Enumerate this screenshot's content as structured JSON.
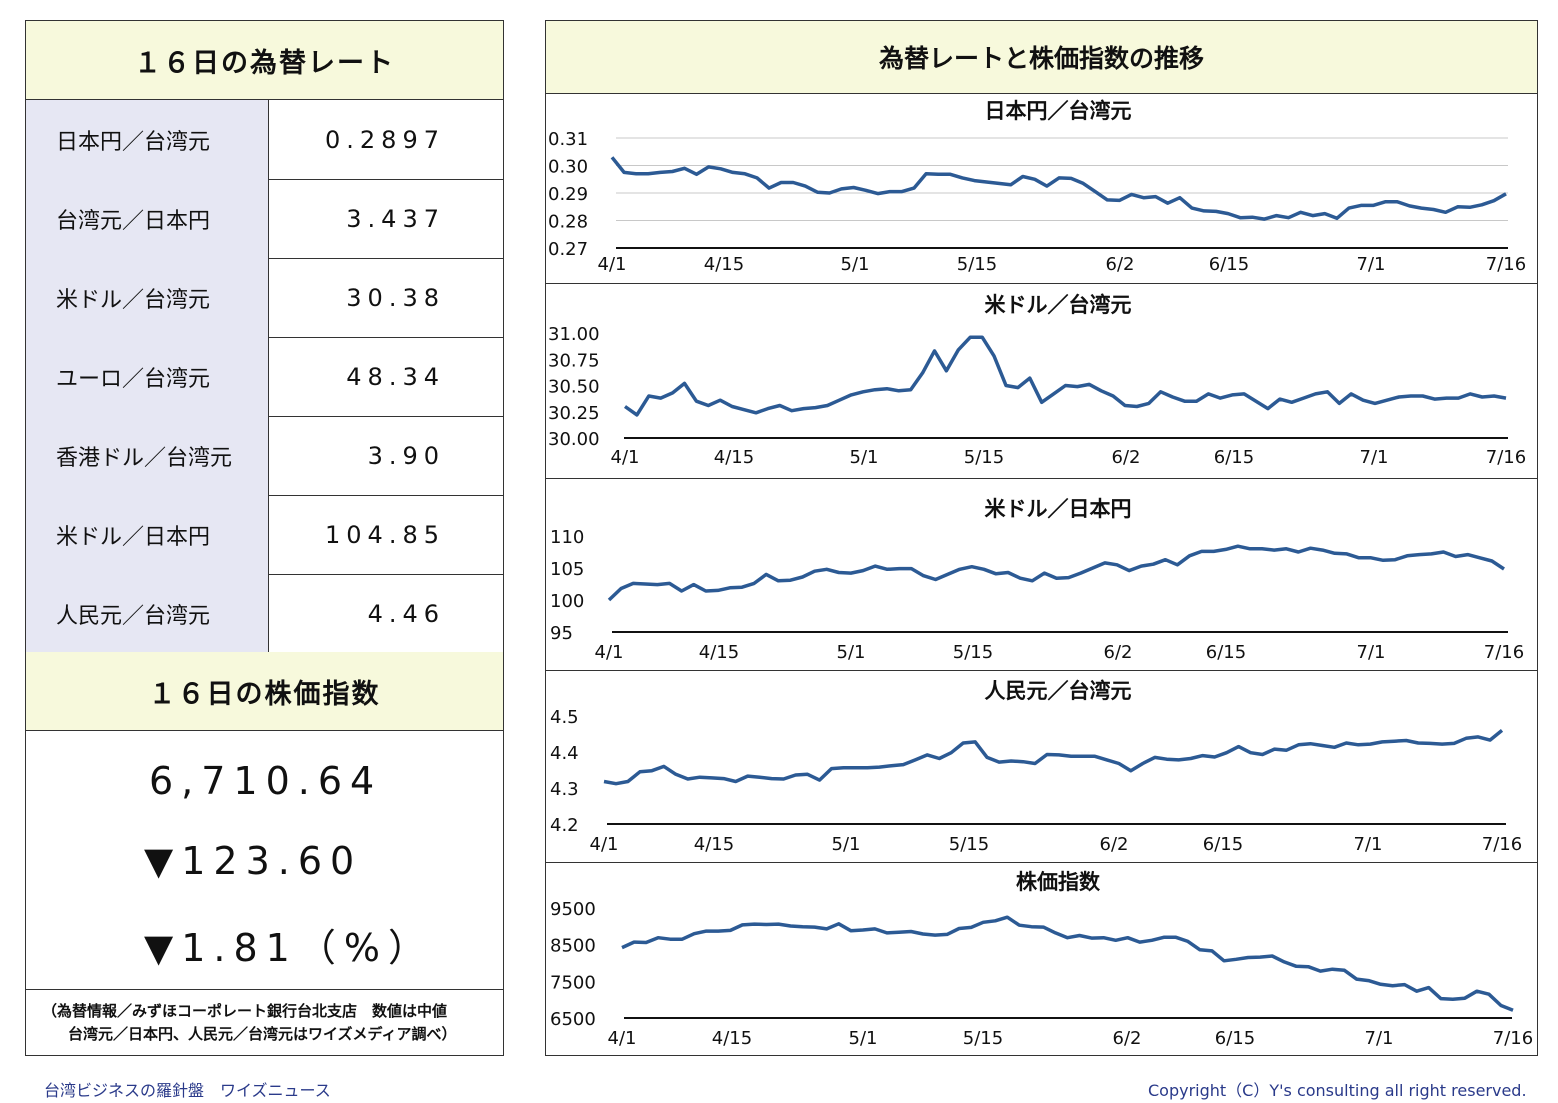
{
  "left": {
    "rate_title": "１６日の為替レート",
    "rates": [
      {
        "name": "日本円／台湾元",
        "value": "0.2897"
      },
      {
        "name": "台湾元／日本円",
        "value": "3.437"
      },
      {
        "name": "米ドル／台湾元",
        "value": "30.38"
      },
      {
        "name": "ユーロ／台湾元",
        "value": "48.34"
      },
      {
        "name": "香港ドル／台湾元",
        "value": "3.90"
      },
      {
        "name": "米ドル／日本円",
        "value": "104.85"
      },
      {
        "name": "人民元／台湾元",
        "value": "4.46"
      }
    ],
    "stock_title": "１６日の株価指数",
    "stock_value": "6,710.64",
    "stock_change": "▼123.60",
    "stock_change_pct": "▼1.81（%）",
    "note_line1": "（為替情報／みずほコーポレート銀行台北支店　数値は中値",
    "note_line2": "台湾元／日本円、人民元／台湾元はワイズメディア調べ）"
  },
  "right": {
    "title": "為替レートと株価指数の推移"
  },
  "footer": {
    "left": "台湾ビジネスの羅針盤　ワイズニュース",
    "right": "Copyright（C）Y's consulting all right reserved."
  },
  "colors": {
    "line": "#2c5a94",
    "header_bg": "#f7f9dc",
    "label_bg": "#e6e7f3"
  },
  "chart_data": [
    {
      "type": "line",
      "title": "日本円／台湾元",
      "x_ticks": [
        "4/1",
        "4/15",
        "5/1",
        "5/15",
        "6/2",
        "6/15",
        "7/1",
        "7/16"
      ],
      "y_ticks": [
        "0.31",
        "0.30",
        "0.29",
        "0.28",
        "0.27"
      ],
      "ylim": [
        0.27,
        0.31
      ],
      "values": [
        0.303,
        0.2975,
        0.297,
        0.297,
        0.2975,
        0.2978,
        0.299,
        0.2968,
        0.2995,
        0.2988,
        0.2975,
        0.297,
        0.2955,
        0.2918,
        0.2938,
        0.2938,
        0.2925,
        0.2903,
        0.29,
        0.2915,
        0.292,
        0.291,
        0.2898,
        0.2905,
        0.2905,
        0.2918,
        0.297,
        0.2968,
        0.2968,
        0.2955,
        0.2945,
        0.294,
        0.2935,
        0.293,
        0.296,
        0.295,
        0.2925,
        0.2955,
        0.2953,
        0.2935,
        0.2905,
        0.2875,
        0.2873,
        0.2895,
        0.2883,
        0.2887,
        0.2863,
        0.2883,
        0.2845,
        0.2835,
        0.2833,
        0.2825,
        0.281,
        0.2812,
        0.2805,
        0.2818,
        0.281,
        0.283,
        0.2818,
        0.2825,
        0.2808,
        0.2845,
        0.2855,
        0.2855,
        0.2868,
        0.2868,
        0.2853,
        0.2845,
        0.284,
        0.283,
        0.285,
        0.2848,
        0.2857,
        0.2872,
        0.2897
      ]
    },
    {
      "type": "line",
      "title": "米ドル／台湾元",
      "x_ticks": [
        "4/1",
        "4/15",
        "5/1",
        "5/15",
        "6/2",
        "6/15",
        "7/1",
        "7/16"
      ],
      "y_ticks": [
        "31.00",
        "30.75",
        "30.50",
        "30.25",
        "30.00"
      ],
      "ylim": [
        30.0,
        31.0
      ],
      "values": [
        30.3,
        30.22,
        30.4,
        30.38,
        30.43,
        30.52,
        30.35,
        30.31,
        30.36,
        30.3,
        30.27,
        30.24,
        30.28,
        30.31,
        30.26,
        30.28,
        30.29,
        30.31,
        30.36,
        30.41,
        30.44,
        30.46,
        30.47,
        30.45,
        30.46,
        30.62,
        30.83,
        30.64,
        30.84,
        30.96,
        30.96,
        30.78,
        30.5,
        30.48,
        30.57,
        30.34,
        30.42,
        30.5,
        30.49,
        30.51,
        30.45,
        30.4,
        30.31,
        30.3,
        30.33,
        30.44,
        30.39,
        30.35,
        30.35,
        30.42,
        30.38,
        30.41,
        30.42,
        30.35,
        30.28,
        30.37,
        30.34,
        30.38,
        30.42,
        30.44,
        30.33,
        30.42,
        30.36,
        30.33,
        30.36,
        30.39,
        30.4,
        30.4,
        30.37,
        30.38,
        30.38,
        30.42,
        30.39,
        30.4,
        30.38
      ]
    },
    {
      "type": "line",
      "title": "米ドル／日本円",
      "x_ticks": [
        "4/1",
        "4/15",
        "5/1",
        "5/15",
        "6/2",
        "6/15",
        "7/1",
        "7/16"
      ],
      "y_ticks": [
        "110",
        "105",
        "100",
        "95"
      ],
      "ylim": [
        95,
        110
      ],
      "values": [
        100.0,
        101.8,
        102.6,
        102.5,
        102.4,
        102.6,
        101.4,
        102.4,
        101.4,
        101.5,
        101.9,
        102.0,
        102.6,
        104.0,
        103.0,
        103.1,
        103.6,
        104.5,
        104.8,
        104.3,
        104.2,
        104.6,
        105.3,
        104.8,
        104.9,
        104.9,
        103.8,
        103.2,
        104.0,
        104.8,
        105.2,
        104.8,
        104.1,
        104.3,
        103.4,
        103.0,
        104.2,
        103.4,
        103.5,
        104.2,
        105.0,
        105.8,
        105.5,
        104.6,
        105.3,
        105.6,
        106.3,
        105.5,
        106.9,
        107.6,
        107.6,
        107.9,
        108.4,
        108.0,
        108.0,
        107.8,
        108.0,
        107.5,
        108.1,
        107.8,
        107.3,
        107.2,
        106.6,
        106.6,
        106.2,
        106.3,
        106.9,
        107.1,
        107.2,
        107.5,
        106.8,
        107.1,
        106.6,
        106.1,
        104.85
      ]
    },
    {
      "type": "line",
      "title": "人民元／台湾元",
      "x_ticks": [
        "4/1",
        "4/15",
        "5/1",
        "5/15",
        "6/2",
        "6/15",
        "7/1",
        "7/16"
      ],
      "y_ticks": [
        "4.5",
        "4.4",
        "4.3",
        "4.2"
      ],
      "ylim": [
        4.2,
        4.5
      ],
      "values": [
        4.318,
        4.312,
        4.318,
        4.345,
        4.348,
        4.36,
        4.338,
        4.325,
        4.33,
        4.328,
        4.326,
        4.318,
        4.333,
        4.33,
        4.326,
        4.325,
        4.336,
        4.338,
        4.322,
        4.354,
        4.356,
        4.356,
        4.356,
        4.358,
        4.362,
        4.365,
        4.378,
        4.392,
        4.382,
        4.398,
        4.425,
        4.428,
        4.385,
        4.372,
        4.375,
        4.373,
        4.368,
        4.393,
        4.392,
        4.388,
        4.388,
        4.388,
        4.378,
        4.368,
        4.348,
        4.368,
        4.385,
        4.38,
        4.378,
        4.382,
        4.39,
        4.386,
        4.398,
        4.415,
        4.398,
        4.393,
        4.408,
        4.405,
        4.42,
        4.423,
        4.418,
        4.413,
        4.425,
        4.42,
        4.422,
        4.428,
        4.43,
        4.432,
        4.425,
        4.424,
        4.422,
        4.424,
        4.438,
        4.442,
        4.433,
        4.46
      ]
    },
    {
      "type": "line",
      "title": "株価指数",
      "x_ticks": [
        "4/1",
        "4/15",
        "5/1",
        "5/15",
        "6/2",
        "6/15",
        "7/1",
        "7/16"
      ],
      "y_ticks": [
        "9500",
        "8500",
        "7500",
        "6500"
      ],
      "ylim": [
        6500,
        9500
      ],
      "values": [
        8420,
        8570,
        8560,
        8690,
        8650,
        8650,
        8800,
        8870,
        8870,
        8890,
        9040,
        9060,
        9050,
        9060,
        9010,
        8990,
        8980,
        8930,
        9070,
        8880,
        8900,
        8930,
        8820,
        8840,
        8860,
        8790,
        8760,
        8780,
        8940,
        8970,
        9110,
        9150,
        9250,
        9030,
        8990,
        8980,
        8820,
        8690,
        8750,
        8680,
        8690,
        8620,
        8690,
        8570,
        8620,
        8700,
        8700,
        8590,
        8360,
        8330,
        8060,
        8100,
        8150,
        8160,
        8190,
        8030,
        7910,
        7900,
        7780,
        7830,
        7800,
        7560,
        7520,
        7420,
        7380,
        7410,
        7230,
        7330,
        7030,
        7010,
        7040,
        7230,
        7150,
        6840,
        6711
      ]
    }
  ]
}
